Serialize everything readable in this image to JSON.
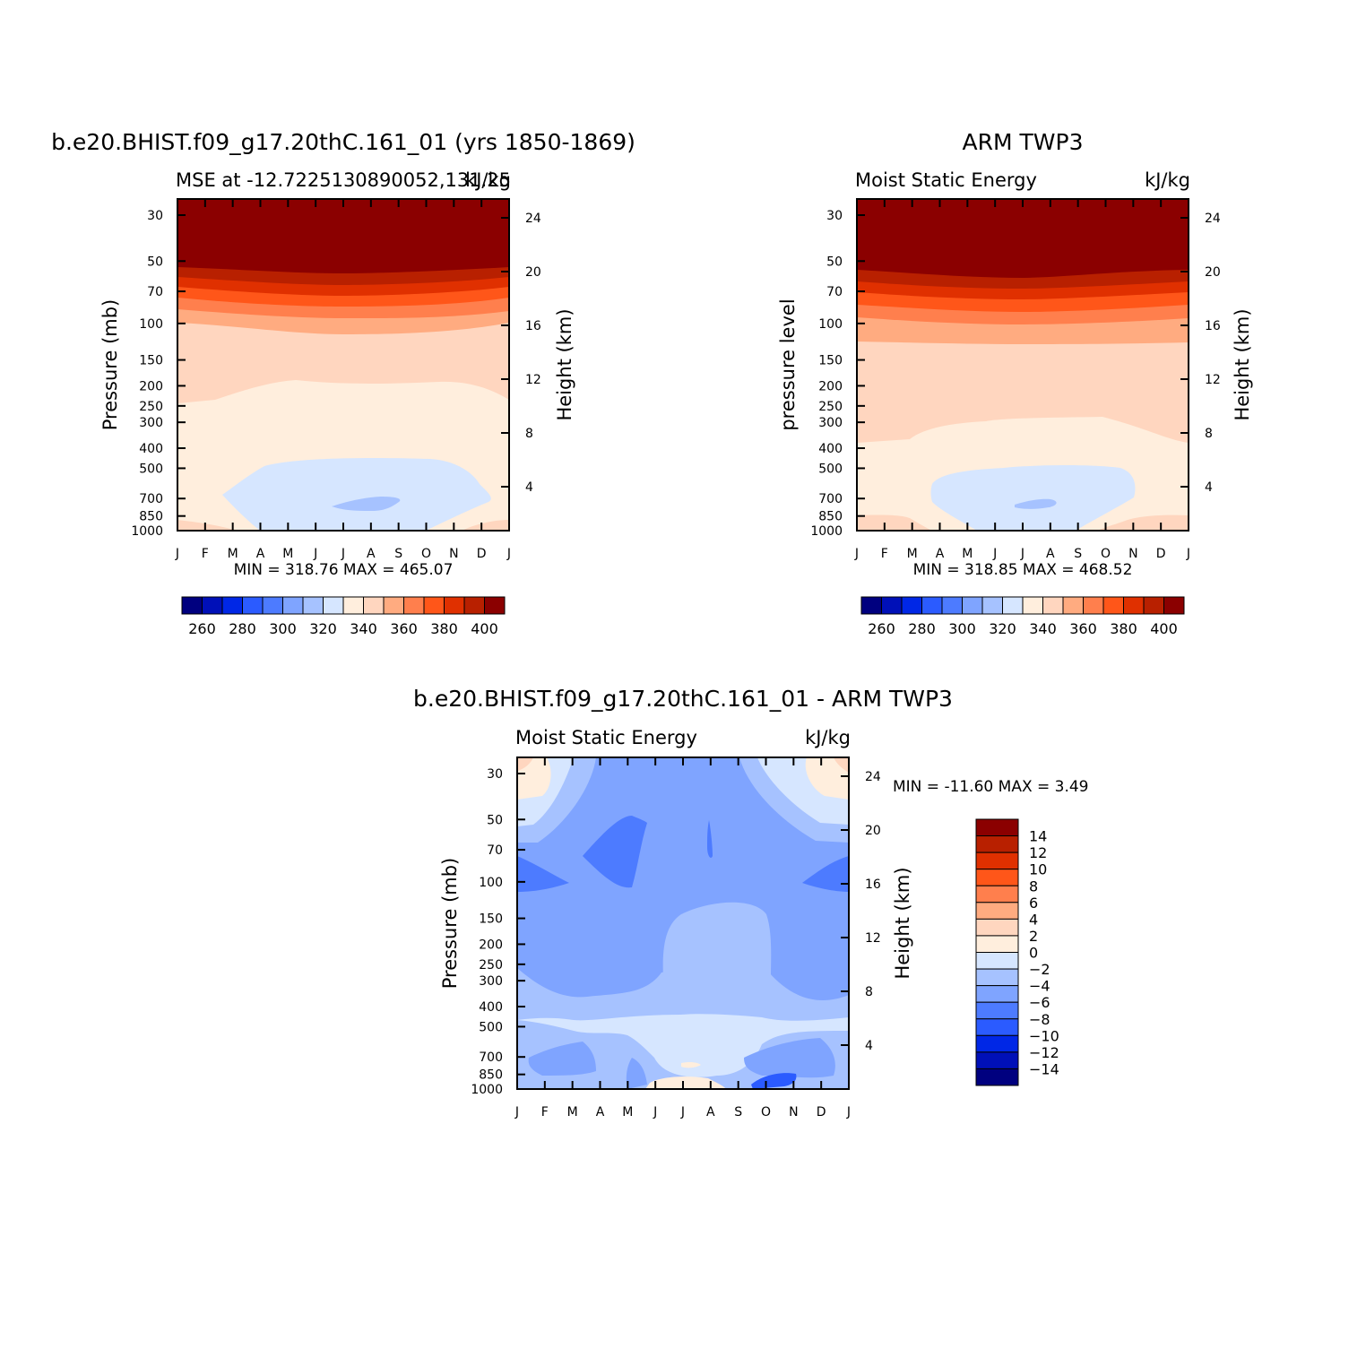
{
  "palette": {
    "mse": [
      "#00007f",
      "#0010b8",
      "#0027e6",
      "#2b5bff",
      "#4d7bff",
      "#7fa4ff",
      "#a6c2ff",
      "#d6e6ff",
      "#ffeedd",
      "#ffd6bf",
      "#ffab80",
      "#ff7f4d",
      "#ff5619",
      "#e03000",
      "#b82000",
      "#8b0000"
    ],
    "diff": [
      "#8b0000",
      "#b82000",
      "#e03000",
      "#ff5619",
      "#ff7f4d",
      "#ffab80",
      "#ffd6bf",
      "#ffeedd",
      "#d6e6ff",
      "#a6c2ff",
      "#7fa4ff",
      "#4d7bff",
      "#2b5bff",
      "#0027e6",
      "#0010b8",
      "#00007f"
    ]
  },
  "chart_data": [
    {
      "type": "contour",
      "title": "b.e20.BHIST.f09_g17.20thC.161_01 (yrs 1850-1869)",
      "left_subtitle": "MSE at -12.7225130890052,131.25",
      "right_subtitle": "kJ/kg",
      "ylabel": "Pressure (mb)",
      "y2label": "Height (km)",
      "x_ticks": [
        "J",
        "F",
        "M",
        "A",
        "M",
        "J",
        "J",
        "A",
        "S",
        "O",
        "N",
        "D",
        "J"
      ],
      "p_ticks": [
        30,
        50,
        70,
        100,
        150,
        200,
        250,
        300,
        400,
        500,
        700,
        850,
        1000
      ],
      "km_ticks": [
        4,
        8,
        12,
        16,
        20,
        24
      ],
      "stats": "MIN = 318.76 MAX = 465.07",
      "colorbar_labels": [
        "260",
        "280",
        "300",
        "320",
        "340",
        "360",
        "380",
        "400"
      ]
    },
    {
      "type": "contour",
      "title": "ARM TWP3",
      "left_subtitle": "Moist Static Energy",
      "right_subtitle": "kJ/kg",
      "ylabel": "pressure level",
      "y2label": "Height (km)",
      "x_ticks": [
        "J",
        "F",
        "M",
        "A",
        "M",
        "J",
        "J",
        "A",
        "S",
        "O",
        "N",
        "D",
        "J"
      ],
      "p_ticks": [
        30,
        50,
        70,
        100,
        150,
        200,
        250,
        300,
        400,
        500,
        700,
        850,
        1000
      ],
      "km_ticks": [
        4,
        8,
        12,
        16,
        20,
        24
      ],
      "stats": "MIN = 318.85 MAX = 468.52",
      "colorbar_labels": [
        "260",
        "280",
        "300",
        "320",
        "340",
        "360",
        "380",
        "400"
      ]
    },
    {
      "type": "contour",
      "title": "b.e20.BHIST.f09_g17.20thC.161_01 - ARM TWP3",
      "left_subtitle": "Moist Static Energy",
      "right_subtitle": "kJ/kg",
      "ylabel": "Pressure (mb)",
      "y2label": "Height (km)",
      "x_ticks": [
        "J",
        "F",
        "M",
        "A",
        "M",
        "J",
        "J",
        "A",
        "S",
        "O",
        "N",
        "D",
        "J"
      ],
      "p_ticks": [
        30,
        50,
        70,
        100,
        150,
        200,
        250,
        300,
        400,
        500,
        700,
        850,
        1000
      ],
      "km_ticks": [
        4,
        8,
        12,
        16,
        20,
        24
      ],
      "stats": "MIN = -11.60 MAX =    3.49",
      "colorbar_labels": [
        "14",
        "12",
        "10",
        "8",
        "6",
        "4",
        "2",
        "0",
        "-2",
        "-4",
        "-6",
        "-8",
        "-10",
        "-12",
        "-14"
      ]
    }
  ]
}
